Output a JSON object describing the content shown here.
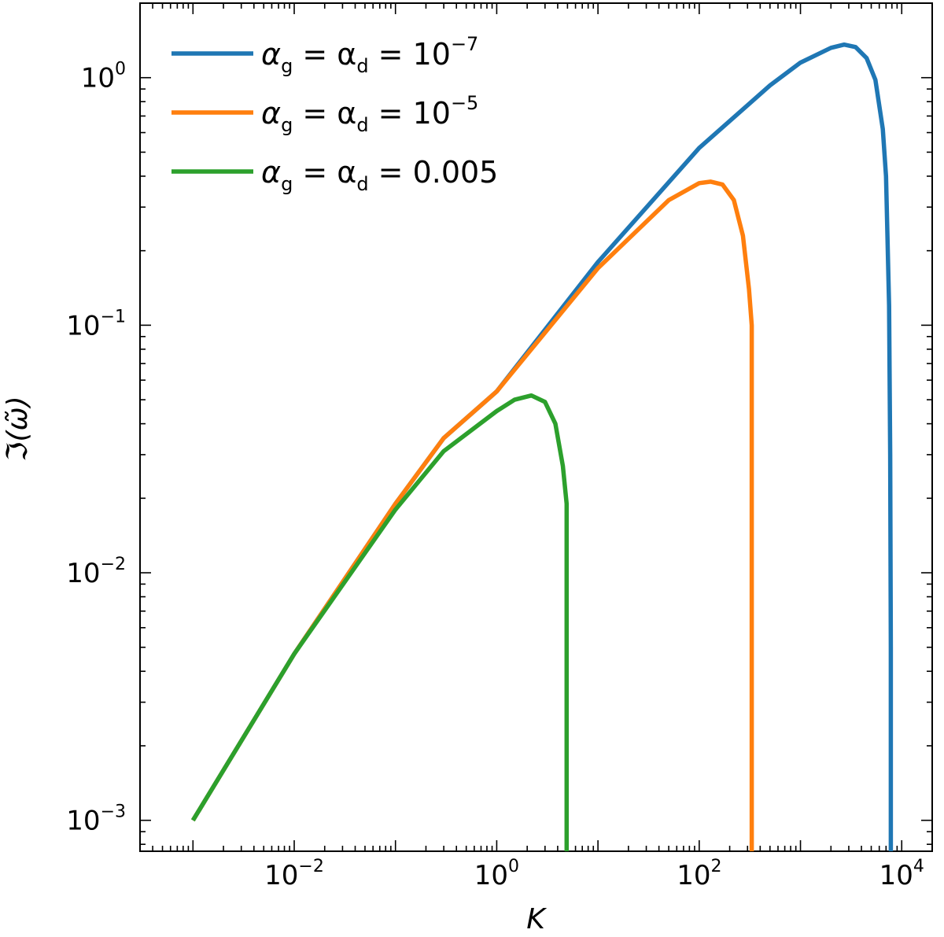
{
  "chart_data": {
    "type": "line",
    "xscale": "log",
    "yscale": "log",
    "xlabel": "K",
    "ylabel": "ℑ(ω̃)",
    "xlim": [
      0.0003,
      20000
    ],
    "ylim": [
      0.00075,
      2.0
    ],
    "grid": false,
    "legend_placement": "top-left",
    "x_ticks": [
      {
        "value": 0.01,
        "base": "10",
        "exp": "−2"
      },
      {
        "value": 1,
        "base": "10",
        "exp": "0"
      },
      {
        "value": 100,
        "base": "10",
        "exp": "2"
      },
      {
        "value": 10000,
        "base": "10",
        "exp": "4"
      }
    ],
    "y_ticks": [
      {
        "value": 0.001,
        "base": "10",
        "exp": "−3"
      },
      {
        "value": 0.01,
        "base": "10",
        "exp": "−2"
      },
      {
        "value": 0.1,
        "base": "10",
        "exp": "−1"
      },
      {
        "value": 1,
        "base": "10",
        "exp": "0"
      }
    ],
    "series": [
      {
        "legend_main": "α",
        "legend_sub1": "g",
        "legend_mid": " = α",
        "legend_sub2": "d",
        "legend_rhs": " = 10",
        "legend_sup": "−7",
        "color": "#1f77b4",
        "x": [
          0.001,
          0.01,
          0.1,
          0.3,
          1,
          10,
          100,
          500,
          1000,
          2000,
          2700,
          3500,
          4500,
          5500,
          6500,
          7000,
          7500,
          7700,
          7800,
          7800
        ],
        "y": [
          0.001,
          0.0047,
          0.019,
          0.035,
          0.054,
          0.18,
          0.52,
          0.93,
          1.15,
          1.32,
          1.36,
          1.33,
          1.2,
          0.98,
          0.62,
          0.4,
          0.12,
          0.03,
          0.005,
          0.00075
        ]
      },
      {
        "legend_main": "α",
        "legend_sub1": "g",
        "legend_mid": " = α",
        "legend_sub2": "d",
        "legend_rhs": " = 10",
        "legend_sup": "−5",
        "color": "#ff7f0e",
        "x": [
          0.001,
          0.01,
          0.1,
          0.3,
          1,
          10,
          50,
          100,
          130,
          170,
          220,
          270,
          310,
          330,
          330
        ],
        "y": [
          0.001,
          0.0047,
          0.019,
          0.035,
          0.054,
          0.17,
          0.32,
          0.375,
          0.38,
          0.37,
          0.32,
          0.23,
          0.14,
          0.1,
          0.00075
        ]
      },
      {
        "legend_main": "α",
        "legend_sub1": "g",
        "legend_mid": " = α",
        "legend_sub2": "d",
        "legend_rhs": " = 0.005",
        "legend_sup": "",
        "color": "#2ca02c",
        "x": [
          0.001,
          0.01,
          0.1,
          0.3,
          1,
          1.5,
          2.2,
          3,
          3.8,
          4.5,
          4.9,
          4.9
        ],
        "y": [
          0.001,
          0.0047,
          0.018,
          0.031,
          0.045,
          0.05,
          0.052,
          0.049,
          0.04,
          0.027,
          0.019,
          0.00075
        ]
      }
    ]
  }
}
